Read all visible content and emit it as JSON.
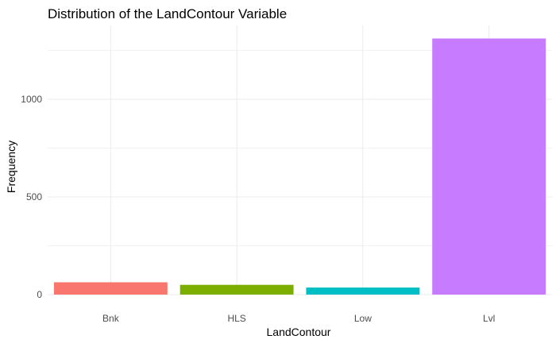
{
  "chart_data": {
    "type": "bar",
    "title": "Distribution of the LandContour Variable",
    "xlabel": "LandContour",
    "ylabel": "Frequency",
    "categories": [
      "Bnk",
      "HLS",
      "Low",
      "Lvl"
    ],
    "values": [
      63,
      50,
      36,
      1311
    ],
    "colors": [
      "#F8766D",
      "#7CAE00",
      "#00BFC4",
      "#C77CFF"
    ],
    "ylim": [
      0,
      1350
    ],
    "yticks": [
      0,
      500,
      1000
    ],
    "yminor": [
      250,
      750,
      1250
    ],
    "grid": true,
    "legend": "none"
  }
}
